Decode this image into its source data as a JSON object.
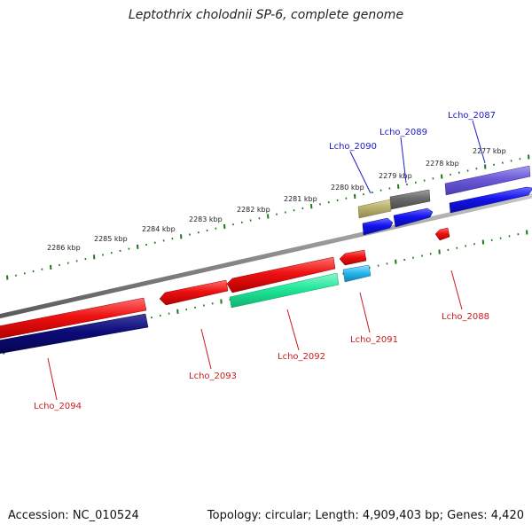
{
  "title": "Leptothrix cholodnii SP-6, complete genome",
  "footer": {
    "accession": "Accession: NC_010524",
    "stats": "Topology: circular; Length: 4,909,403 bp; Genes: 4,420"
  },
  "colors": {
    "backbone": "#8c8c8c",
    "tick": "#1a7a1a",
    "forward_label": "#1a1acc",
    "reverse_label": "#cc1a1a",
    "red_gene": "#ee1111",
    "navy_gene": "#0b0b7a",
    "green_gene": "#1fe89a",
    "cyan_gene": "#29b8f0",
    "blue_gene": "#1212ee",
    "purple_gene": "#6a5ad8",
    "gray_gene": "#6a6a6a",
    "khaki_gene": "#b8b070"
  },
  "scale": {
    "unit": "kbp",
    "labels": [
      "2277 kbp",
      "2278 kbp",
      "2279 kbp",
      "2280 kbp",
      "2281 kbp",
      "2282 kbp",
      "2283 kbp",
      "2284 kbp",
      "2285 kbp",
      "2286 kbp"
    ]
  },
  "gene_labels": [
    {
      "name": "Lcho_2087",
      "strand": "forward"
    },
    {
      "name": "Lcho_2089",
      "strand": "forward"
    },
    {
      "name": "Lcho_2090",
      "strand": "forward"
    },
    {
      "name": "Lcho_2088",
      "strand": "reverse"
    },
    {
      "name": "Lcho_2091",
      "strand": "reverse"
    },
    {
      "name": "Lcho_2092",
      "strand": "reverse"
    },
    {
      "name": "Lcho_2093",
      "strand": "reverse"
    },
    {
      "name": "Lcho_2094",
      "strand": "reverse"
    }
  ]
}
